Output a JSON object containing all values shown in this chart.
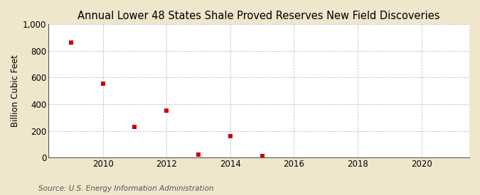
{
  "title": "Annual Lower 48 States Shale Proved Reserves New Field Discoveries",
  "ylabel": "Billion Cubic Feet",
  "source": "Source: U.S. Energy Information Administration",
  "x_values": [
    2009,
    2010,
    2011,
    2012,
    2013,
    2014,
    2015
  ],
  "y_values": [
    860,
    555,
    230,
    350,
    20,
    160,
    10
  ],
  "marker_color": "#cc0000",
  "marker_size": 4,
  "marker_style": "s",
  "xlim": [
    2008.3,
    2021.5
  ],
  "ylim": [
    0,
    1000
  ],
  "yticks": [
    0,
    200,
    400,
    600,
    800,
    1000
  ],
  "xticks": [
    2010,
    2012,
    2014,
    2016,
    2018,
    2020
  ],
  "background_color": "#f0e6cc",
  "plot_bg_color": "#ffffff",
  "grid_color": "#999999",
  "title_fontsize": 10.5,
  "label_fontsize": 8.5,
  "tick_fontsize": 8.5,
  "source_fontsize": 7.5
}
